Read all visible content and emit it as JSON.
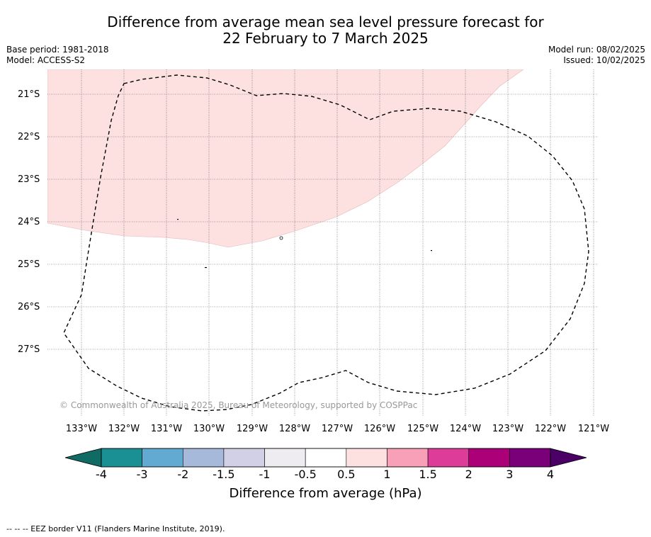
{
  "title_line1": "Difference from average mean sea level pressure forecast for",
  "title_line2": "22 February to 7 March 2025",
  "base_period": "Base period: 1981-2018",
  "model": "Model: ACCESS-S2",
  "model_run": "Model run: 08/02/2025",
  "issued": "Issued: 10/02/2025",
  "copyright": "© Commonwealth of Australia 2025, Bureau of Meteorology, supported by COSPPac",
  "footer_legend": "-- -- -- EEZ border V11 (Flanders Marine Institute, 2019).",
  "map": {
    "latitude_labels": [
      "21°S",
      "22°S",
      "23°S",
      "24°S",
      "25°S",
      "26°S",
      "27°S"
    ],
    "longitude_labels": [
      "133°W",
      "132°W",
      "131°W",
      "130°W",
      "129°W",
      "128°W",
      "127°W",
      "126°W",
      "125°W",
      "124°W",
      "123°W",
      "122°W",
      "121°W"
    ],
    "anomaly_fill_color": "#fde0e0",
    "eez_border_style": "dashed"
  },
  "colorbar": {
    "title": "Difference from average (hPa)",
    "tick_labels": [
      "-4",
      "-3",
      "-2",
      "-1.5",
      "-1",
      "-0.5",
      "0.5",
      "1",
      "1.5",
      "2",
      "3",
      "4"
    ],
    "colors": [
      "#1a8f94",
      "#62aad1",
      "#a7b9db",
      "#d1d0e6",
      "#eeecf0",
      "#ffffff",
      "#fde0e0",
      "#f8a0b8",
      "#dd3c98",
      "#ac0079",
      "#7a007a"
    ],
    "under_color": "#0f6b64",
    "over_color": "#4b0066"
  }
}
